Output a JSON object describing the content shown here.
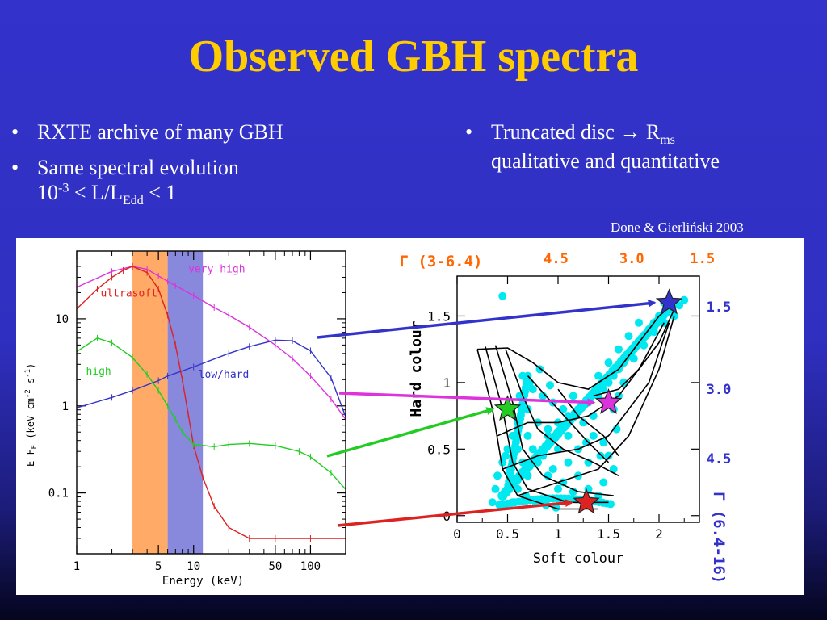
{
  "slide": {
    "title": "Observed GBH spectra",
    "left_bullets": {
      "b1": "RXTE archive of many GBH",
      "b2_line1": "Same spectral evolution",
      "b2_line2": {
        "pre": "10",
        "exp": "-3",
        "mid": " < L/L",
        "sub": "Edd",
        "post": " < 1"
      }
    },
    "right_bullets": {
      "b1": {
        "pre": "Truncated disc → R",
        "sub": "ms"
      },
      "b1_line2": "qualitative and quantitative"
    },
    "reference": "Done & Gierliński 2003"
  },
  "colors": {
    "background": "#3333cc",
    "title": "#ffcc00",
    "very_high": "#dd33dd",
    "ultrasoft": "#dd2222",
    "high": "#22cc22",
    "low_hard": "#3333cc",
    "orange_band": "#ffaa66",
    "blue_band": "#8888dd",
    "scatter": "#00e8f0",
    "gamma_top": "#ff6600",
    "gamma_right": "#3333cc"
  },
  "chart_data": [
    {
      "type": "line",
      "ylabel": "E F_E (keV cm⁻² s⁻¹)",
      "ylabel_parts": {
        "a": "E F",
        "a_sub": "E",
        "b": " (keV cm",
        "b_sup": "-2",
        "c": " s",
        "c_sup": "-1",
        "d": ")"
      },
      "xlabel": "Energy (keV)",
      "xscale": "log",
      "yscale": "log",
      "xlim": [
        1,
        200
      ],
      "ylim": [
        0.02,
        60
      ],
      "xticks": [
        1,
        5,
        10,
        50,
        100
      ],
      "xtick_labels": [
        "1",
        "5",
        "10",
        "50",
        "100"
      ],
      "yticks": [
        0.1,
        1,
        10
      ],
      "ytick_labels": [
        "0.1",
        "1",
        "10"
      ],
      "bands": [
        {
          "from": 3,
          "to": 6
        },
        {
          "from": 6,
          "to": 12
        }
      ],
      "series": [
        {
          "name": "very high",
          "label_at": [
            9,
            34
          ],
          "x": [
            1,
            2,
            3,
            4,
            5,
            6,
            7,
            10,
            15,
            20,
            30,
            50,
            70,
            100,
            150,
            200
          ],
          "y": [
            23,
            35,
            40,
            37,
            31,
            27,
            24,
            18.5,
            13.5,
            11,
            8,
            5,
            3.5,
            2.2,
            1.2,
            0.7
          ]
        },
        {
          "name": "ultrasoft",
          "label_at": [
            1.6,
            18
          ],
          "x": [
            1,
            1.5,
            2,
            2.5,
            3,
            4,
            5,
            6,
            7,
            8,
            9,
            10,
            12,
            15,
            20,
            30,
            50,
            100,
            200
          ],
          "y": [
            13,
            22,
            30,
            36,
            40,
            34,
            22,
            11,
            5,
            2,
            0.8,
            0.35,
            0.15,
            0.07,
            0.04,
            0.03,
            0.03,
            0.03,
            0.03
          ]
        },
        {
          "name": "high",
          "label_at": [
            1.2,
            2.3
          ],
          "x": [
            1,
            1.5,
            2,
            3,
            4,
            5,
            6,
            7,
            8,
            10,
            15,
            20,
            30,
            50,
            80,
            100,
            150,
            200
          ],
          "y": [
            4.2,
            6.0,
            5.3,
            3.6,
            2.3,
            1.5,
            1.0,
            0.7,
            0.5,
            0.36,
            0.34,
            0.36,
            0.37,
            0.35,
            0.3,
            0.26,
            0.17,
            0.11
          ]
        },
        {
          "name": "low/hard",
          "label_at": [
            11,
            2.1
          ],
          "x": [
            1,
            2,
            3,
            5,
            6,
            10,
            20,
            30,
            50,
            70,
            100,
            150,
            200
          ],
          "y": [
            0.95,
            1.25,
            1.5,
            1.95,
            2.2,
            2.8,
            4.0,
            4.8,
            5.7,
            5.6,
            4.3,
            2.1,
            0.75
          ]
        }
      ]
    },
    {
      "type": "scatter",
      "xlabel": "Soft colour",
      "ylabel": "Hard colour",
      "xlim": [
        0,
        2.4
      ],
      "ylim": [
        -0.05,
        1.8
      ],
      "xticks": [
        0,
        0.5,
        1,
        1.5,
        2
      ],
      "xtick_labels": [
        "0",
        "0.5",
        "1",
        "1.5",
        "2"
      ],
      "yticks": [
        0,
        0.5,
        1,
        1.5
      ],
      "ytick_labels": [
        "0",
        "0.5",
        "1",
        "1.5"
      ],
      "gamma_top_label": "Γ (3-6.4)",
      "gamma_top_ticks": [
        {
          "label": "4.5",
          "x": 0.5
        },
        {
          "label": "3.0",
          "x": 1.25
        },
        {
          "label": "1.5",
          "x": 1.95
        }
      ],
      "gamma_right_label": "Γ (6.4-16)",
      "gamma_right_ticks": [
        {
          "label": "1.5",
          "y": 1.57
        },
        {
          "label": "3.0",
          "y": 0.95
        },
        {
          "label": "4.5",
          "y": 0.43
        }
      ],
      "points": [
        [
          0.45,
          1.65
        ],
        [
          2.05,
          1.6
        ],
        [
          2.1,
          1.55
        ],
        [
          2.15,
          1.5
        ],
        [
          2.05,
          1.45
        ],
        [
          2.0,
          1.5
        ],
        [
          1.95,
          1.45
        ],
        [
          1.9,
          1.4
        ],
        [
          1.85,
          1.35
        ],
        [
          1.8,
          1.3
        ],
        [
          1.75,
          1.25
        ],
        [
          1.7,
          1.2
        ],
        [
          1.65,
          1.15
        ],
        [
          1.6,
          1.1
        ],
        [
          1.55,
          1.05
        ],
        [
          1.5,
          1.0
        ],
        [
          1.45,
          0.95
        ],
        [
          1.4,
          0.9
        ],
        [
          1.3,
          0.85
        ],
        [
          1.2,
          0.8
        ],
        [
          1.1,
          0.75
        ],
        [
          1.0,
          0.7
        ],
        [
          0.9,
          0.65
        ],
        [
          2.2,
          1.58
        ],
        [
          2.25,
          1.62
        ],
        [
          1.95,
          1.38
        ],
        [
          1.85,
          1.28
        ],
        [
          1.75,
          1.18
        ],
        [
          1.7,
          1.35
        ],
        [
          1.8,
          1.45
        ],
        [
          1.6,
          1.25
        ],
        [
          1.5,
          1.15
        ],
        [
          1.4,
          1.05
        ],
        [
          0.65,
          1.05
        ],
        [
          0.75,
          0.95
        ],
        [
          0.85,
          0.9
        ],
        [
          0.95,
          0.85
        ],
        [
          0.7,
          0.8
        ],
        [
          0.6,
          0.7
        ],
        [
          0.55,
          0.6
        ],
        [
          0.5,
          0.5
        ],
        [
          0.45,
          0.4
        ],
        [
          0.4,
          0.3
        ],
        [
          0.38,
          0.2
        ],
        [
          0.35,
          0.1
        ],
        [
          0.6,
          0.5
        ],
        [
          0.7,
          0.6
        ],
        [
          0.8,
          0.7
        ],
        [
          0.9,
          0.6
        ],
        [
          1.0,
          0.5
        ],
        [
          1.1,
          0.4
        ],
        [
          1.2,
          0.3
        ],
        [
          1.3,
          0.2
        ],
        [
          1.4,
          0.15
        ],
        [
          0.8,
          0.4
        ],
        [
          0.9,
          0.3
        ],
        [
          1.0,
          0.2
        ],
        [
          1.1,
          0.12
        ],
        [
          0.7,
          0.3
        ],
        [
          0.6,
          0.2
        ],
        [
          0.55,
          0.1
        ],
        [
          0.65,
          0.4
        ],
        [
          0.75,
          0.5
        ],
        [
          0.85,
          0.45
        ],
        [
          0.95,
          0.35
        ],
        [
          1.05,
          0.25
        ],
        [
          1.15,
          0.18
        ],
        [
          1.25,
          0.12
        ],
        [
          1.35,
          0.6
        ],
        [
          1.45,
          0.55
        ],
        [
          1.5,
          0.45
        ],
        [
          1.55,
          0.35
        ],
        [
          1.45,
          0.25
        ],
        [
          1.3,
          0.4
        ],
        [
          1.2,
          0.5
        ],
        [
          1.1,
          0.6
        ],
        [
          1.25,
          0.7
        ],
        [
          1.35,
          0.75
        ],
        [
          1.15,
          0.9
        ],
        [
          1.05,
          0.8
        ],
        [
          1.6,
          0.9
        ],
        [
          1.55,
          0.8
        ],
        [
          1.65,
          1.0
        ],
        [
          0.48,
          0.45
        ],
        [
          0.52,
          0.35
        ],
        [
          0.58,
          0.25
        ],
        [
          0.68,
          0.15
        ],
        [
          0.78,
          0.1
        ],
        [
          0.88,
          0.08
        ],
        [
          0.98,
          0.06
        ],
        [
          1.58,
          0.65
        ],
        [
          1.42,
          0.45
        ],
        [
          1.28,
          0.55
        ],
        [
          0.62,
          0.9
        ],
        [
          0.72,
          1.0
        ],
        [
          0.82,
          1.1
        ],
        [
          0.92,
          0.98
        ]
      ],
      "markers": [
        {
          "name": "low/hard",
          "x": 2.1,
          "y": 1.6
        },
        {
          "name": "very high",
          "x": 1.5,
          "y": 0.85
        },
        {
          "name": "high",
          "x": 0.5,
          "y": 0.8
        },
        {
          "name": "ultrasoft",
          "x": 1.28,
          "y": 0.1
        }
      ]
    }
  ]
}
